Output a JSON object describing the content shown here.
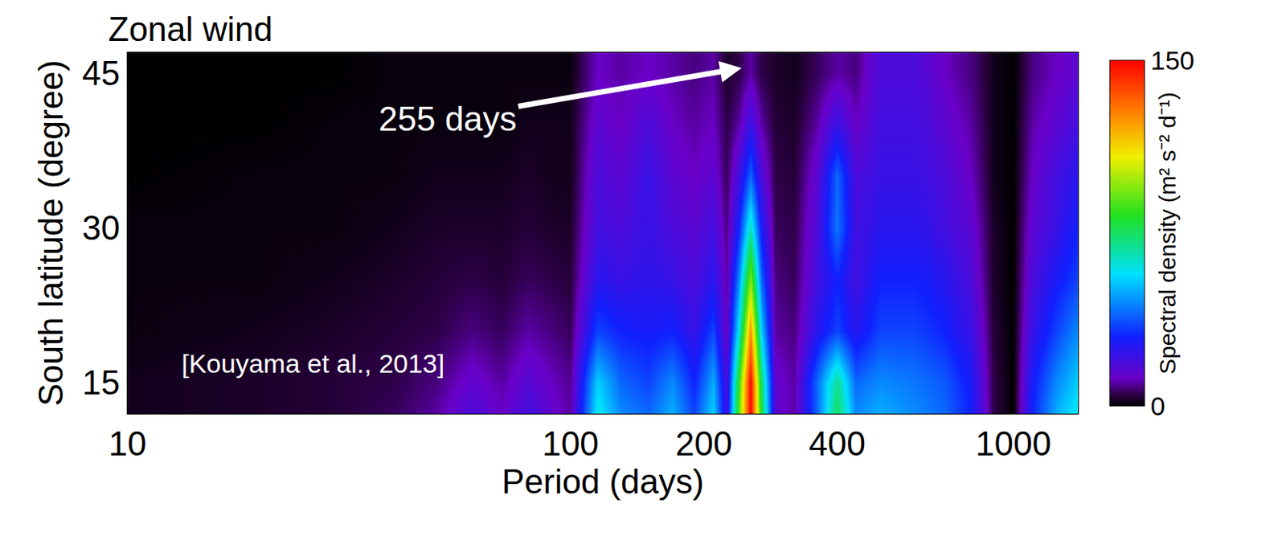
{
  "chart_data": {
    "type": "heatmap",
    "title": "Zonal wind",
    "x_label": "Period (days)",
    "y_label": "South latitude (degree)",
    "log": "x",
    "xlim": [
      10,
      1400
    ],
    "ylim": [
      12,
      47
    ],
    "xticks": [
      10,
      100,
      200,
      400,
      1000
    ],
    "yticks": [
      15,
      30,
      45
    ],
    "x": [
      10,
      20,
      30,
      40,
      50,
      60,
      70,
      80,
      90,
      100,
      115,
      130,
      150,
      170,
      190,
      210,
      225,
      240,
      255,
      270,
      290,
      320,
      360,
      400,
      440,
      500,
      600,
      700,
      800,
      900,
      1000,
      1100,
      1250,
      1400
    ],
    "y": [
      12,
      15,
      20,
      25,
      30,
      35,
      40,
      45,
      47
    ],
    "z": [
      [
        2,
        3,
        4,
        6,
        10,
        18,
        12,
        20,
        14,
        10,
        60,
        45,
        40,
        50,
        35,
        55,
        20,
        90,
        150,
        80,
        15,
        10,
        40,
        75,
        45,
        50,
        45,
        40,
        30,
        5,
        0,
        30,
        50,
        60
      ],
      [
        2,
        3,
        4,
        5,
        8,
        14,
        10,
        16,
        12,
        9,
        55,
        40,
        35,
        45,
        30,
        50,
        18,
        85,
        150,
        75,
        14,
        10,
        40,
        70,
        40,
        45,
        42,
        38,
        28,
        5,
        0,
        28,
        45,
        55
      ],
      [
        1,
        2,
        3,
        4,
        5,
        8,
        6,
        10,
        8,
        6,
        35,
        30,
        28,
        30,
        22,
        35,
        12,
        60,
        125,
        55,
        10,
        8,
        25,
        35,
        25,
        35,
        35,
        30,
        22,
        4,
        0,
        22,
        35,
        45
      ],
      [
        1,
        1,
        2,
        3,
        4,
        5,
        4,
        6,
        5,
        4,
        25,
        22,
        24,
        22,
        18,
        25,
        10,
        45,
        95,
        40,
        8,
        6,
        20,
        30,
        20,
        30,
        30,
        25,
        18,
        3,
        0,
        18,
        28,
        35
      ],
      [
        1,
        1,
        1,
        2,
        3,
        3,
        3,
        4,
        3,
        3,
        20,
        18,
        22,
        18,
        15,
        20,
        8,
        30,
        65,
        28,
        6,
        5,
        18,
        42,
        20,
        25,
        25,
        20,
        15,
        3,
        0,
        15,
        22,
        30
      ],
      [
        0,
        1,
        1,
        1,
        2,
        2,
        2,
        3,
        2,
        2,
        18,
        15,
        22,
        15,
        12,
        15,
        6,
        20,
        40,
        18,
        5,
        4,
        15,
        40,
        18,
        22,
        22,
        18,
        12,
        2,
        0,
        12,
        20,
        25
      ],
      [
        0,
        0,
        1,
        1,
        1,
        1,
        1,
        2,
        2,
        2,
        15,
        12,
        18,
        12,
        10,
        12,
        5,
        10,
        22,
        10,
        4,
        3,
        10,
        22,
        12,
        20,
        20,
        15,
        10,
        2,
        0,
        10,
        15,
        20
      ],
      [
        0,
        0,
        0,
        1,
        1,
        1,
        1,
        1,
        1,
        1,
        12,
        10,
        12,
        10,
        8,
        10,
        3,
        5,
        10,
        5,
        3,
        2,
        6,
        10,
        8,
        18,
        18,
        12,
        8,
        2,
        0,
        8,
        12,
        15
      ],
      [
        0,
        0,
        0,
        1,
        1,
        1,
        1,
        1,
        1,
        1,
        12,
        10,
        12,
        10,
        8,
        10,
        3,
        5,
        10,
        5,
        3,
        2,
        6,
        10,
        8,
        18,
        18,
        12,
        8,
        2,
        0,
        8,
        12,
        15
      ]
    ],
    "colorbar": {
      "label": "Spectral density (m² s⁻² d⁻¹)",
      "range": [
        0,
        150
      ],
      "ticks": [
        0,
        150
      ]
    },
    "shaded_periods": [
      [
        115,
        220
      ],
      [
        430,
        780
      ],
      [
        1050,
        1400
      ]
    ],
    "annotations": [
      {
        "text": "255 days",
        "x": 255
      },
      {
        "text": "[Kouyama et al., 2013]"
      }
    ]
  }
}
